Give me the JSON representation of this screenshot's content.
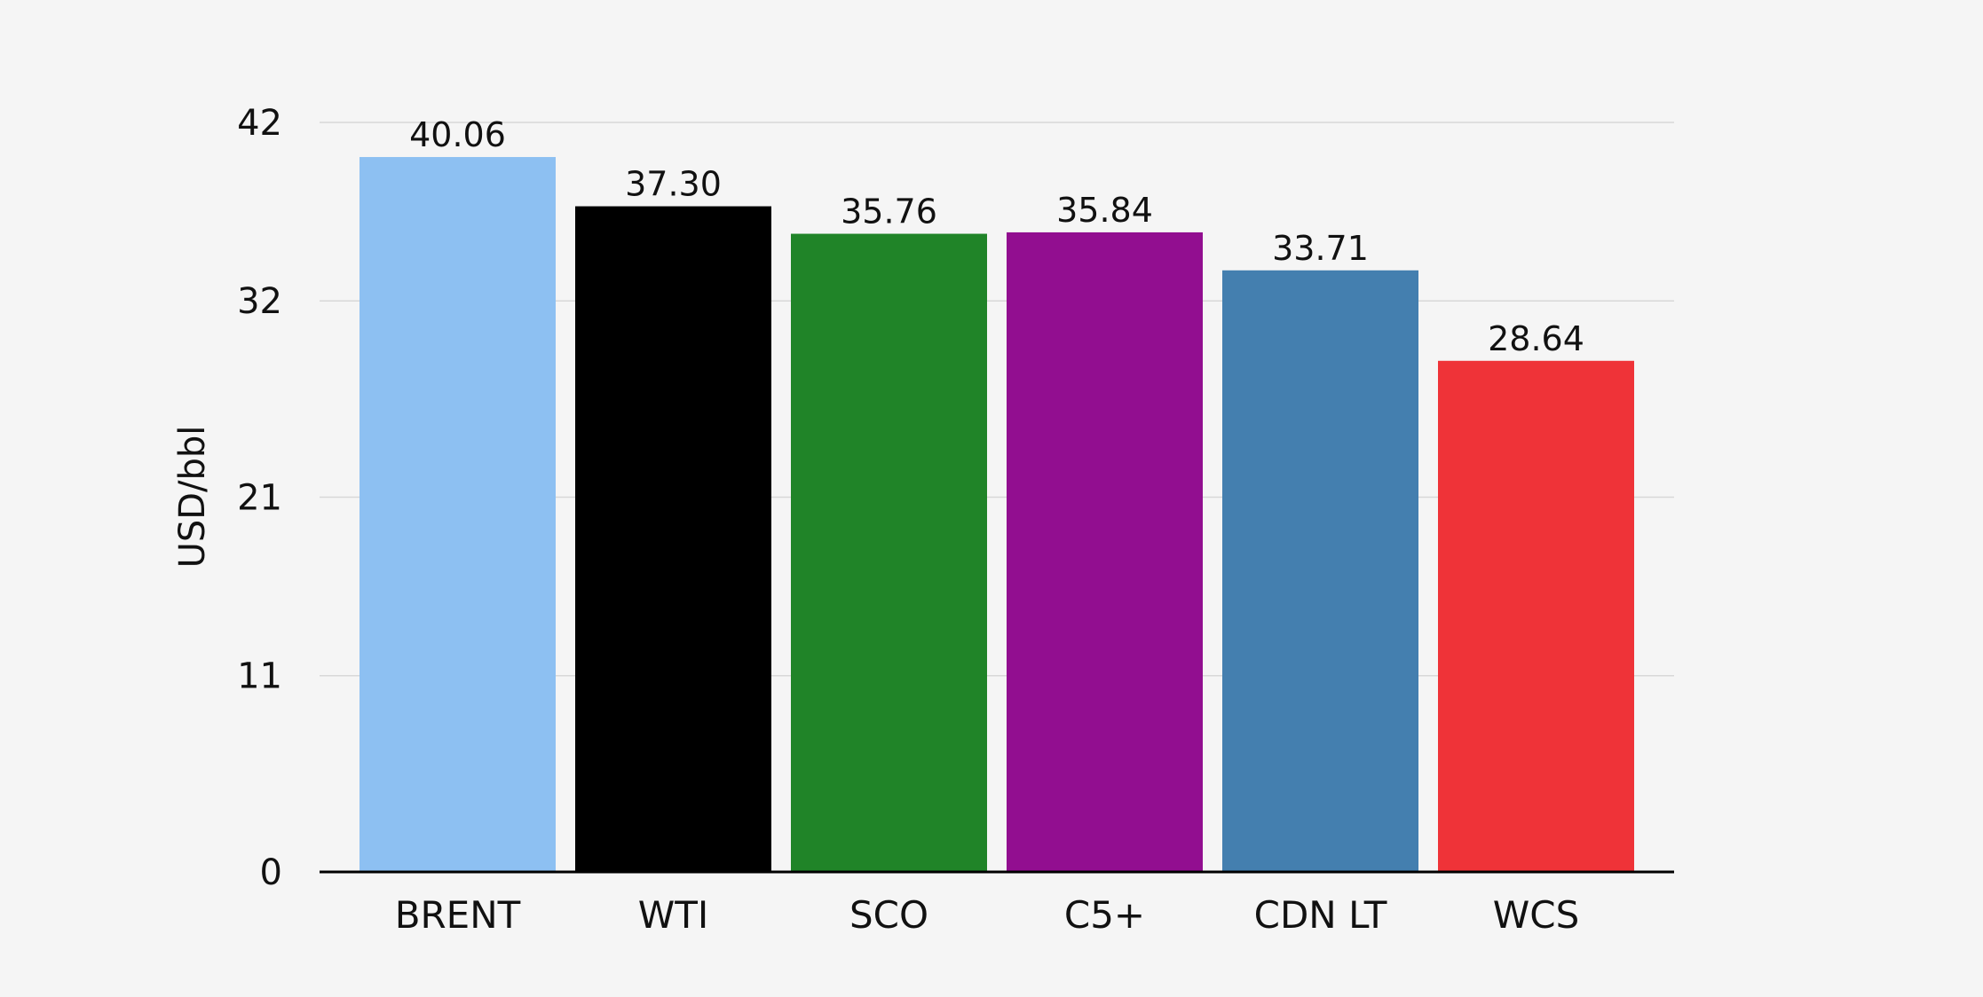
{
  "chart_data": {
    "type": "bar",
    "title": "",
    "xlabel": "",
    "ylabel": "USD/bbl",
    "ylim": [
      0,
      42
    ],
    "yticks": [
      0,
      11,
      21,
      32,
      42
    ],
    "grid": true,
    "legend": "none",
    "categories": [
      "BRENT",
      "WTI",
      "SCO",
      "C5+",
      "CDN LT",
      "WCS"
    ],
    "values": [
      40.06,
      37.3,
      35.76,
      35.84,
      33.71,
      28.64
    ],
    "value_labels": [
      "40.06",
      "37.30",
      "35.76",
      "35.84",
      "33.71",
      "28.64"
    ],
    "colors": [
      "#8dc0f2",
      "#000000",
      "#208428",
      "#920e90",
      "#447faf",
      "#ef3338"
    ]
  }
}
